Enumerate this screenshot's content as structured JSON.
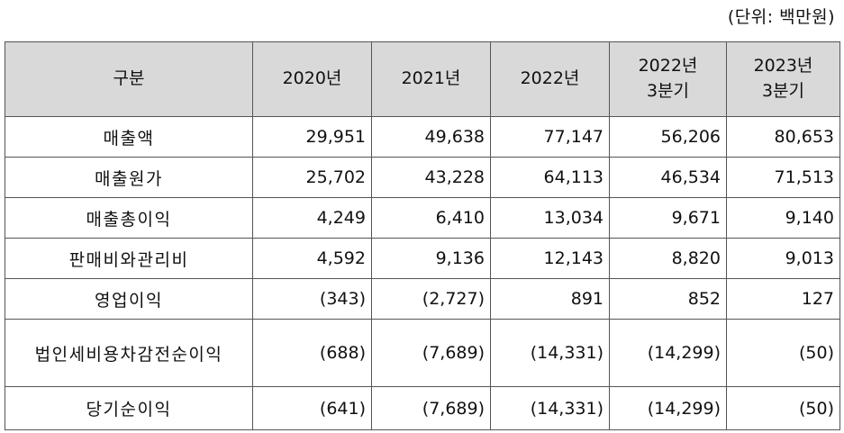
{
  "unit_note": "(단위: 백만원)",
  "headers": {
    "category": "구분",
    "y2020": "2020년",
    "y2021": "2021년",
    "y2022": "2022년",
    "q2022_line1": "2022년",
    "q2022_line2": "3분기",
    "q2023_line1": "2023년",
    "q2023_line2": "3분기"
  },
  "rows": [
    {
      "label": "매출액",
      "values": [
        "29,951",
        "49,638",
        "77,147",
        "56,206",
        "80,653"
      ]
    },
    {
      "label": "매출원가",
      "values": [
        "25,702",
        "43,228",
        "64,113",
        "46,534",
        "71,513"
      ]
    },
    {
      "label": "매출총이익",
      "values": [
        "4,249",
        "6,410",
        "13,034",
        "9,671",
        "9,140"
      ]
    },
    {
      "label": "판매비와관리비",
      "values": [
        "4,592",
        "9,136",
        "12,143",
        "8,820",
        "9,013"
      ]
    },
    {
      "label": "영업이익",
      "values": [
        "(343)",
        "(2,727)",
        "891",
        "852",
        "127"
      ]
    },
    {
      "label": "법인세비용차감전순이익",
      "values": [
        "(688)",
        "(7,689)",
        "(14,331)",
        "(14,299)",
        "(50)"
      ]
    },
    {
      "label": "당기순이익",
      "values": [
        "(641)",
        "(7,689)",
        "(14,331)",
        "(14,299)",
        "(50)"
      ]
    }
  ]
}
